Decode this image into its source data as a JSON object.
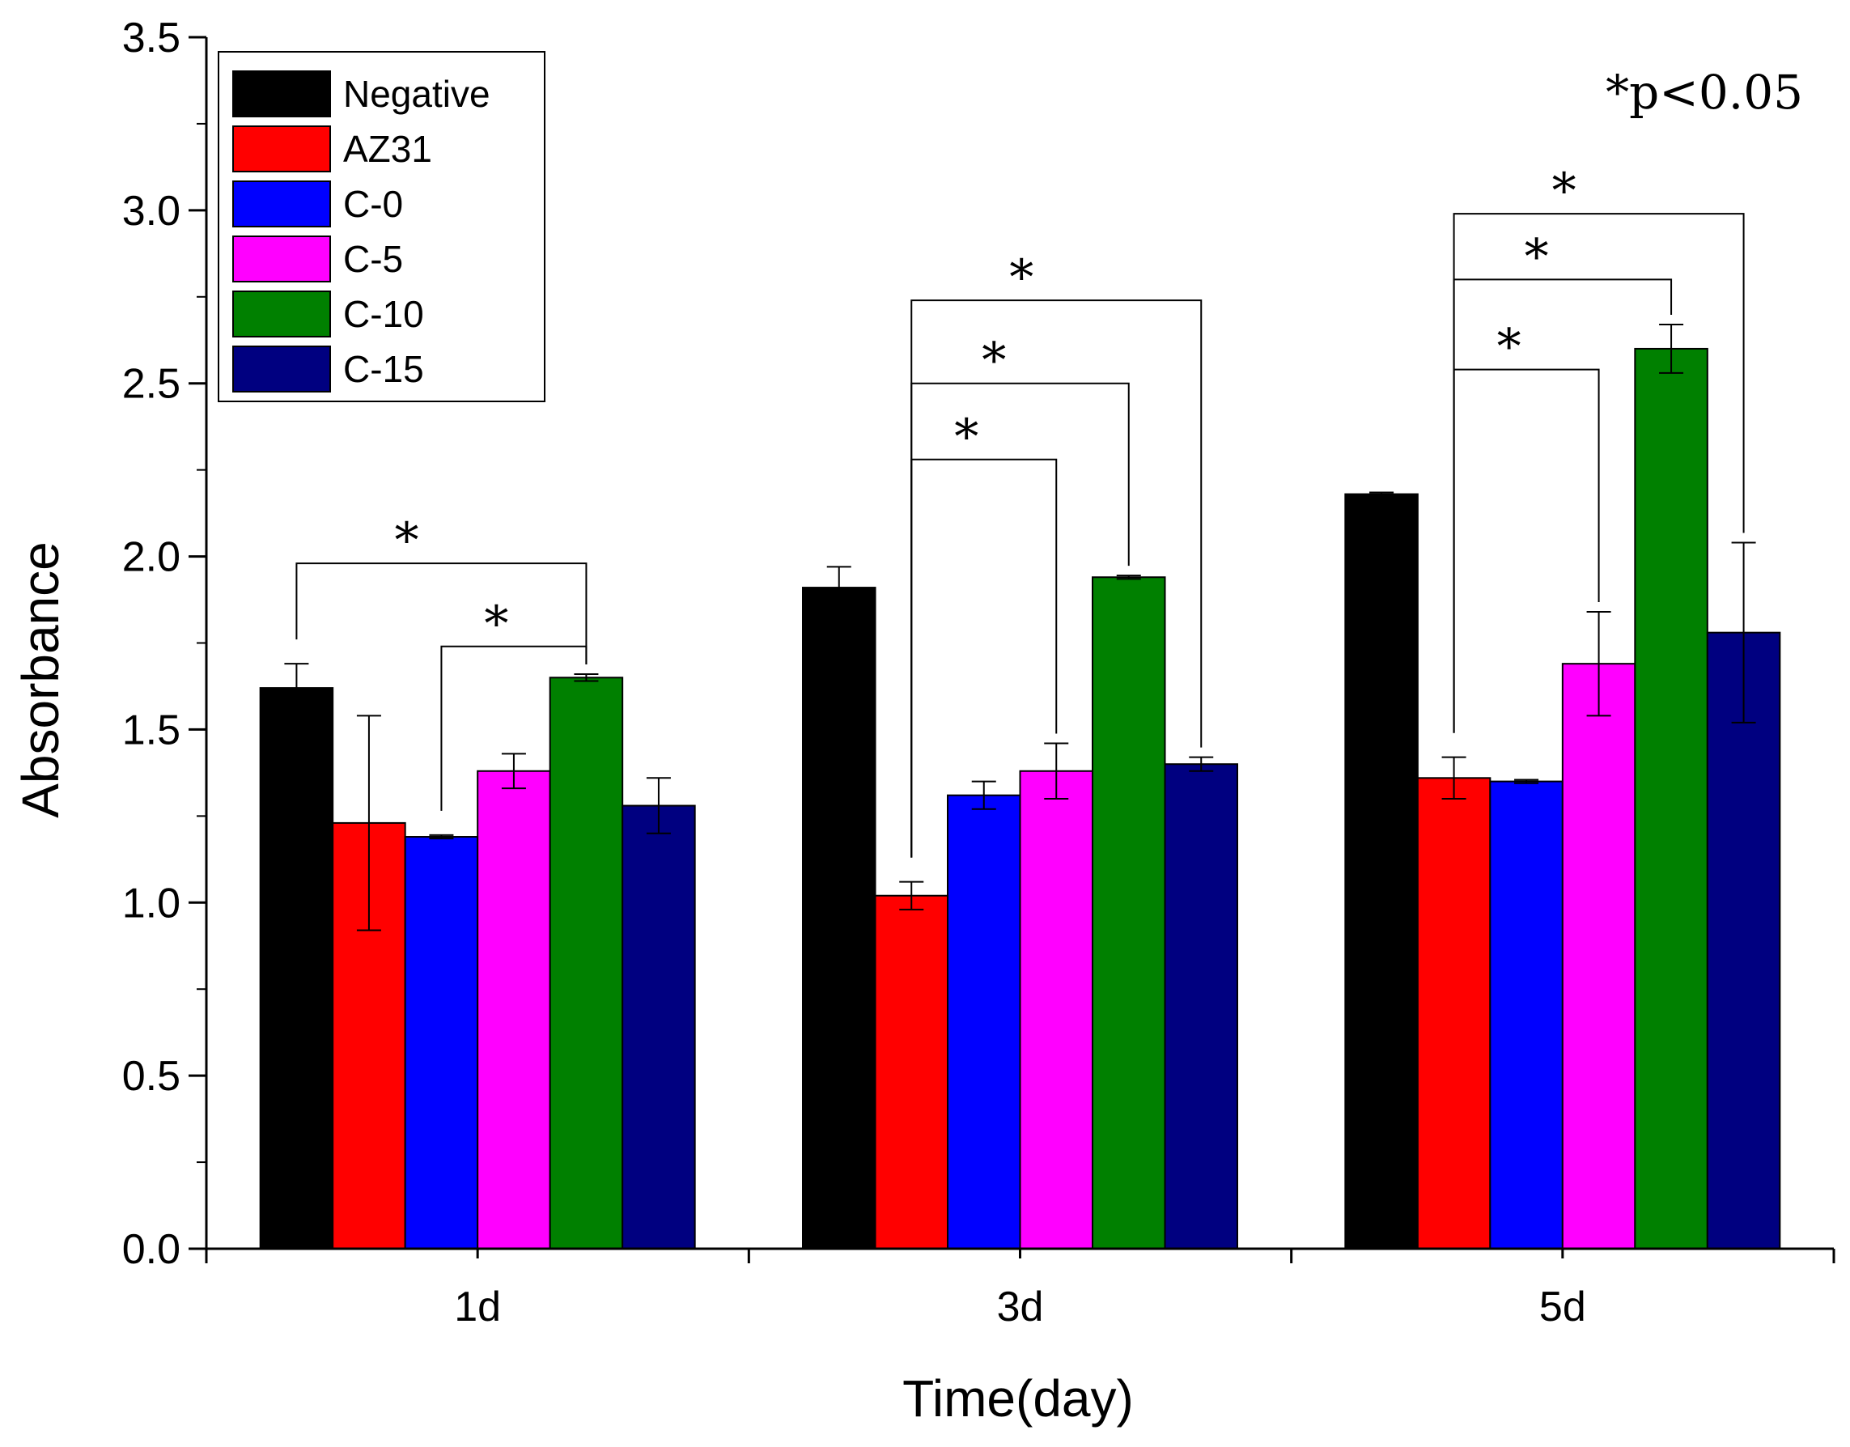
{
  "chart_data": {
    "type": "bar",
    "title": "",
    "xlabel": "Time(day)",
    "ylabel": "Absorbance",
    "ylim": [
      0,
      3.5
    ],
    "yticks": [
      "0.0",
      "0.5",
      "1.0",
      "1.5",
      "2.0",
      "2.5",
      "3.0",
      "3.5"
    ],
    "categories": [
      "1d",
      "3d",
      "5d"
    ],
    "legend_position": "top-left",
    "significance_note": "*p<0.05",
    "significance_marker": "*",
    "series": [
      {
        "name": "Negative",
        "color": "#000000",
        "values": [
          1.62,
          1.91,
          2.18
        ],
        "errors": [
          0.07,
          0.06,
          0.005
        ]
      },
      {
        "name": "AZ31",
        "color": "#ff0000",
        "values": [
          1.23,
          1.02,
          1.36
        ],
        "errors": [
          0.31,
          0.04,
          0.06
        ]
      },
      {
        "name": "C-0",
        "color": "#0000ff",
        "values": [
          1.19,
          1.31,
          1.35
        ],
        "errors": [
          0.005,
          0.04,
          0.005
        ]
      },
      {
        "name": "C-5",
        "color": "#ff00ff",
        "values": [
          1.38,
          1.38,
          1.69
        ],
        "errors": [
          0.05,
          0.08,
          0.15
        ]
      },
      {
        "name": "C-10",
        "color": "#008000",
        "values": [
          1.65,
          1.94,
          2.6
        ],
        "errors": [
          0.01,
          0.005,
          0.07
        ]
      },
      {
        "name": "C-15",
        "color": "#000080",
        "values": [
          1.28,
          1.4,
          1.78
        ],
        "errors": [
          0.08,
          0.02,
          0.26
        ]
      }
    ],
    "comparisons": [
      {
        "category": 0,
        "from": 0,
        "to": 4,
        "level": 1.98
      },
      {
        "category": 0,
        "from": 2,
        "to": 4,
        "level": 1.74
      },
      {
        "category": 1,
        "from": 1,
        "to": 3,
        "level": 2.28
      },
      {
        "category": 1,
        "from": 1,
        "to": 4,
        "level": 2.5
      },
      {
        "category": 1,
        "from": 1,
        "to": 5,
        "level": 2.74
      },
      {
        "category": 2,
        "from": 1,
        "to": 3,
        "level": 2.54
      },
      {
        "category": 2,
        "from": 1,
        "to": 4,
        "level": 2.8
      },
      {
        "category": 2,
        "from": 1,
        "to": 5,
        "level": 2.99
      }
    ]
  }
}
